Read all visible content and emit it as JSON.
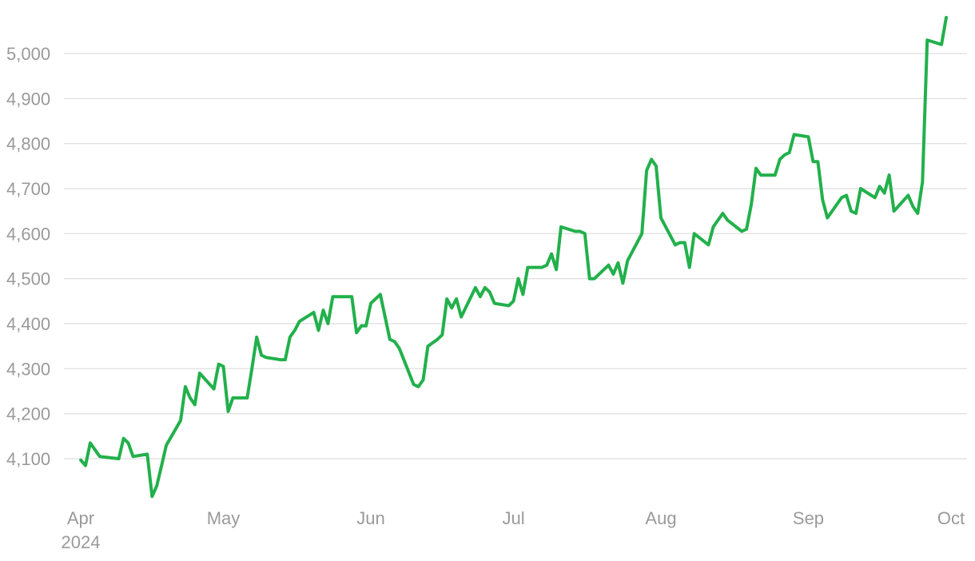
{
  "chart_data": {
    "type": "line",
    "title": "",
    "xlabel": "",
    "ylabel": "",
    "ylim": [
      4010,
      5090
    ],
    "xlim": [
      "2024-03-31",
      "2024-10-01"
    ],
    "grid": true,
    "legend": "none",
    "colors": {
      "line": "#22b04b",
      "grid": "#dddddd",
      "tick_text": "#9a9a9a"
    },
    "y_ticks": [
      {
        "value": 4100,
        "label": "4,100"
      },
      {
        "value": 4200,
        "label": "4,200"
      },
      {
        "value": 4300,
        "label": "4,300"
      },
      {
        "value": 4400,
        "label": "4,400"
      },
      {
        "value": 4500,
        "label": "4,500"
      },
      {
        "value": 4600,
        "label": "4,600"
      },
      {
        "value": 4700,
        "label": "4,700"
      },
      {
        "value": 4800,
        "label": "4,800"
      },
      {
        "value": 4900,
        "label": "4,900"
      },
      {
        "value": 5000,
        "label": "5,000"
      }
    ],
    "x_ticks": [
      {
        "date": "2024-04-01",
        "label": "Apr",
        "sublabel": "2024"
      },
      {
        "date": "2024-05-01",
        "label": "May"
      },
      {
        "date": "2024-06-01",
        "label": "Jun"
      },
      {
        "date": "2024-07-01",
        "label": "Jul"
      },
      {
        "date": "2024-08-01",
        "label": "Aug"
      },
      {
        "date": "2024-09-01",
        "label": "Sep"
      },
      {
        "date": "2024-10-01",
        "label": "Oct"
      }
    ],
    "series": [
      {
        "points": [
          [
            "2024-04-01",
            4097
          ],
          [
            "2024-04-02",
            4085
          ],
          [
            "2024-04-03",
            4135
          ],
          [
            "2024-04-05",
            4105
          ],
          [
            "2024-04-08",
            4101
          ],
          [
            "2024-04-09",
            4100
          ],
          [
            "2024-04-10",
            4145
          ],
          [
            "2024-04-11",
            4135
          ],
          [
            "2024-04-12",
            4105
          ],
          [
            "2024-04-15",
            4110
          ],
          [
            "2024-04-16",
            4016
          ],
          [
            "2024-04-17",
            4040
          ],
          [
            "2024-04-18",
            4085
          ],
          [
            "2024-04-19",
            4130
          ],
          [
            "2024-04-22",
            4185
          ],
          [
            "2024-04-23",
            4260
          ],
          [
            "2024-04-24",
            4235
          ],
          [
            "2024-04-25",
            4220
          ],
          [
            "2024-04-26",
            4290
          ],
          [
            "2024-04-29",
            4255
          ],
          [
            "2024-04-30",
            4310
          ],
          [
            "2024-05-01",
            4305
          ],
          [
            "2024-05-02",
            4205
          ],
          [
            "2024-05-03",
            4235
          ],
          [
            "2024-05-06",
            4235
          ],
          [
            "2024-05-07",
            4300
          ],
          [
            "2024-05-08",
            4370
          ],
          [
            "2024-05-09",
            4330
          ],
          [
            "2024-05-10",
            4325
          ],
          [
            "2024-05-13",
            4320
          ],
          [
            "2024-05-14",
            4320
          ],
          [
            "2024-05-15",
            4370
          ],
          [
            "2024-05-16",
            4385
          ],
          [
            "2024-05-17",
            4405
          ],
          [
            "2024-05-20",
            4425
          ],
          [
            "2024-05-21",
            4385
          ],
          [
            "2024-05-22",
            4430
          ],
          [
            "2024-05-23",
            4400
          ],
          [
            "2024-05-24",
            4460
          ],
          [
            "2024-05-27",
            4460
          ],
          [
            "2024-05-28",
            4460
          ],
          [
            "2024-05-29",
            4380
          ],
          [
            "2024-05-30",
            4395
          ],
          [
            "2024-05-31",
            4395
          ],
          [
            "2024-06-01",
            4445
          ],
          [
            "2024-06-03",
            4465
          ],
          [
            "2024-06-05",
            4365
          ],
          [
            "2024-06-06",
            4360
          ],
          [
            "2024-06-07",
            4345
          ],
          [
            "2024-06-10",
            4265
          ],
          [
            "2024-06-11",
            4260
          ],
          [
            "2024-06-12",
            4275
          ],
          [
            "2024-06-13",
            4350
          ],
          [
            "2024-06-15",
            4365
          ],
          [
            "2024-06-16",
            4375
          ],
          [
            "2024-06-17",
            4455
          ],
          [
            "2024-06-18",
            4435
          ],
          [
            "2024-06-19",
            4455
          ],
          [
            "2024-06-20",
            4415
          ],
          [
            "2024-06-23",
            4480
          ],
          [
            "2024-06-24",
            4460
          ],
          [
            "2024-06-25",
            4480
          ],
          [
            "2024-06-26",
            4470
          ],
          [
            "2024-06-27",
            4445
          ],
          [
            "2024-06-30",
            4440
          ],
          [
            "2024-07-01",
            4450
          ],
          [
            "2024-07-02",
            4500
          ],
          [
            "2024-07-03",
            4465
          ],
          [
            "2024-07-04",
            4525
          ],
          [
            "2024-07-07",
            4525
          ],
          [
            "2024-07-08",
            4530
          ],
          [
            "2024-07-09",
            4555
          ],
          [
            "2024-07-10",
            4520
          ],
          [
            "2024-07-11",
            4615
          ],
          [
            "2024-07-14",
            4605
          ],
          [
            "2024-07-15",
            4605
          ],
          [
            "2024-07-16",
            4600
          ],
          [
            "2024-07-17",
            4500
          ],
          [
            "2024-07-18",
            4500
          ],
          [
            "2024-07-21",
            4530
          ],
          [
            "2024-07-22",
            4510
          ],
          [
            "2024-07-23",
            4535
          ],
          [
            "2024-07-24",
            4490
          ],
          [
            "2024-07-25",
            4540
          ],
          [
            "2024-07-28",
            4600
          ],
          [
            "2024-07-29",
            4740
          ],
          [
            "2024-07-30",
            4765
          ],
          [
            "2024-07-31",
            4750
          ],
          [
            "2024-08-01",
            4635
          ],
          [
            "2024-08-04",
            4575
          ],
          [
            "2024-08-05",
            4580
          ],
          [
            "2024-08-06",
            4580
          ],
          [
            "2024-08-07",
            4525
          ],
          [
            "2024-08-08",
            4600
          ],
          [
            "2024-08-11",
            4575
          ],
          [
            "2024-08-12",
            4615
          ],
          [
            "2024-08-14",
            4645
          ],
          [
            "2024-08-15",
            4630
          ],
          [
            "2024-08-18",
            4605
          ],
          [
            "2024-08-19",
            4610
          ],
          [
            "2024-08-20",
            4665
          ],
          [
            "2024-08-21",
            4745
          ],
          [
            "2024-08-22",
            4730
          ],
          [
            "2024-08-25",
            4730
          ],
          [
            "2024-08-26",
            4765
          ],
          [
            "2024-08-27",
            4775
          ],
          [
            "2024-08-28",
            4780
          ],
          [
            "2024-08-29",
            4820
          ],
          [
            "2024-09-01",
            4815
          ],
          [
            "2024-09-02",
            4760
          ],
          [
            "2024-09-03",
            4760
          ],
          [
            "2024-09-04",
            4675
          ],
          [
            "2024-09-05",
            4635
          ],
          [
            "2024-09-08",
            4680
          ],
          [
            "2024-09-09",
            4685
          ],
          [
            "2024-09-10",
            4650
          ],
          [
            "2024-09-11",
            4645
          ],
          [
            "2024-09-12",
            4700
          ],
          [
            "2024-09-15",
            4680
          ],
          [
            "2024-09-16",
            4705
          ],
          [
            "2024-09-17",
            4690
          ],
          [
            "2024-09-18",
            4730
          ],
          [
            "2024-09-19",
            4650
          ],
          [
            "2024-09-22",
            4685
          ],
          [
            "2024-09-23",
            4660
          ],
          [
            "2024-09-24",
            4645
          ],
          [
            "2024-09-25",
            4715
          ],
          [
            "2024-09-26",
            5030
          ],
          [
            "2024-09-29",
            5020
          ],
          [
            "2024-09-30",
            5080
          ]
        ]
      }
    ]
  }
}
